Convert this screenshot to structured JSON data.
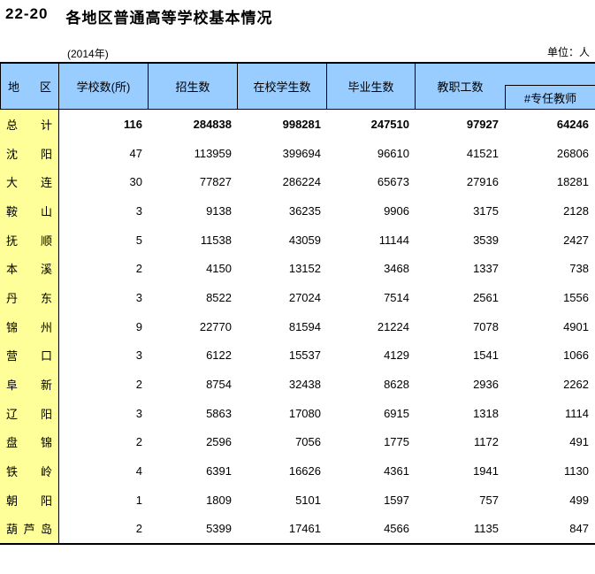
{
  "header_area": {
    "table_no": "22-20",
    "title": "各地区普通高等学校基本情况",
    "year": "(2014年)",
    "unit": "单位：人"
  },
  "table": {
    "columns": {
      "region_char_left": "地",
      "region_char_right": "区",
      "schools": "学校数(所)",
      "enrollment": "招生数",
      "students": "在校学生数",
      "graduates": "毕业生数",
      "staff": "教职工数",
      "fulltime_teachers": "#专任教师"
    },
    "rows": [
      {
        "region": "总计",
        "values": [
          "116",
          "284838",
          "998281",
          "247510",
          "97927",
          "64246"
        ],
        "bold": true
      },
      {
        "region": "沈阳",
        "values": [
          "47",
          "113959",
          "399694",
          "96610",
          "41521",
          "26806"
        ],
        "bold": false
      },
      {
        "region": "大连",
        "values": [
          "30",
          "77827",
          "286224",
          "65673",
          "27916",
          "18281"
        ],
        "bold": false
      },
      {
        "region": "鞍山",
        "values": [
          "3",
          "9138",
          "36235",
          "9906",
          "3175",
          "2128"
        ],
        "bold": false
      },
      {
        "region": "抚顺",
        "values": [
          "5",
          "11538",
          "43059",
          "11144",
          "3539",
          "2427"
        ],
        "bold": false
      },
      {
        "region": "本溪",
        "values": [
          "2",
          "4150",
          "13152",
          "3468",
          "1337",
          "738"
        ],
        "bold": false
      },
      {
        "region": "丹东",
        "values": [
          "3",
          "8522",
          "27024",
          "7514",
          "2561",
          "1556"
        ],
        "bold": false
      },
      {
        "region": "锦州",
        "values": [
          "9",
          "22770",
          "81594",
          "21224",
          "7078",
          "4901"
        ],
        "bold": false
      },
      {
        "region": "营口",
        "values": [
          "3",
          "6122",
          "15537",
          "4129",
          "1541",
          "1066"
        ],
        "bold": false
      },
      {
        "region": "阜新",
        "values": [
          "2",
          "8754",
          "32438",
          "8628",
          "2936",
          "2262"
        ],
        "bold": false
      },
      {
        "region": "辽阳",
        "values": [
          "3",
          "5863",
          "17080",
          "6915",
          "1318",
          "1114"
        ],
        "bold": false
      },
      {
        "region": "盘锦",
        "values": [
          "2",
          "2596",
          "7056",
          "1775",
          "1172",
          "491"
        ],
        "bold": false
      },
      {
        "region": "铁岭",
        "values": [
          "4",
          "6391",
          "16626",
          "4361",
          "1941",
          "1130"
        ],
        "bold": false
      },
      {
        "region": "朝阳",
        "values": [
          "1",
          "1809",
          "5101",
          "1597",
          "757",
          "499"
        ],
        "bold": false
      },
      {
        "region": "葫芦岛",
        "values": [
          "2",
          "5399",
          "17461",
          "4566",
          "1135",
          "847"
        ],
        "bold": false
      }
    ]
  },
  "colors": {
    "header_bg": "#99CCFF",
    "region_bg": "#FFFF99",
    "border": "#000000",
    "text": "#000000"
  }
}
